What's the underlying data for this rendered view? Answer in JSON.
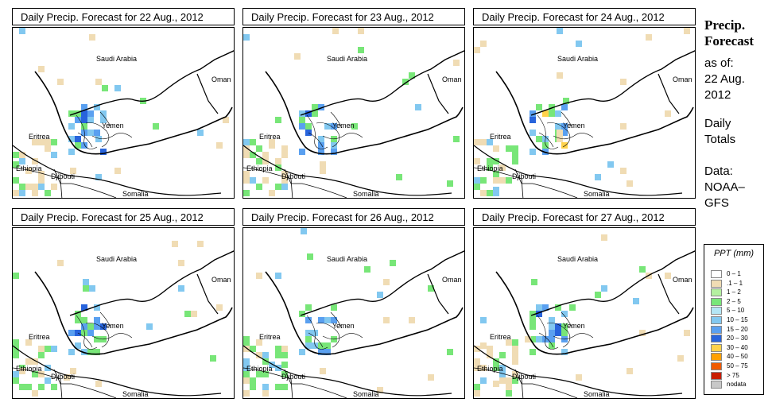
{
  "panels": [
    {
      "title": "Daily Precip. Forecast for  22 Aug., 2012"
    },
    {
      "title": "Daily Precip. Forecast for  23 Aug., 2012"
    },
    {
      "title": "Daily Precip. Forecast for  24 Aug., 2012"
    },
    {
      "title": "Daily Precip. Forecast for  25 Aug., 2012"
    },
    {
      "title": "Daily Precip. Forecast for  26 Aug., 2012"
    },
    {
      "title": "Daily Precip. Forecast for  27 Aug., 2012"
    }
  ],
  "map_labels": {
    "saudi": "Saudi Arabia",
    "oman": "Oman",
    "yemen": "Yemen",
    "eritrea": "Eritrea",
    "ethiopia": "Ethiopia",
    "djibouti": "Djibouti",
    "somalia": "Somalia"
  },
  "side": {
    "title_line1": "Precip.",
    "title_line2": "Forecast",
    "asof": "as of:",
    "date1": "22 Aug.",
    "date2": "2012",
    "daily1": "Daily",
    "daily2": "Totals",
    "data1": "Data:",
    "data2": "NOAA–",
    "data3": "GFS"
  },
  "legend": {
    "title": "PPT (mm)",
    "items": [
      {
        "label": "0 – 1",
        "color": "#ffffff"
      },
      {
        "label": ".1 – 1",
        "color": "#f0dcb4"
      },
      {
        "label": "1 – 2",
        "color": "#b4f0a0"
      },
      {
        "label": "2 – 5",
        "color": "#78e678"
      },
      {
        "label": "5 – 10",
        "color": "#b4e6f5"
      },
      {
        "label": "10 – 15",
        "color": "#82c8f0"
      },
      {
        "label": "15 – 20",
        "color": "#5aa0f0"
      },
      {
        "label": "20 – 30",
        "color": "#2864dc"
      },
      {
        "label": "30 – 40",
        "color": "#ffd24b"
      },
      {
        "label": "40 – 50",
        "color": "#ffa000"
      },
      {
        "label": "50 – 75",
        "color": "#f05a00"
      },
      {
        "label": "> 75",
        "color": "#c81e00"
      },
      {
        "label": "nodata",
        "color": "#c8c8c8"
      }
    ]
  }
}
